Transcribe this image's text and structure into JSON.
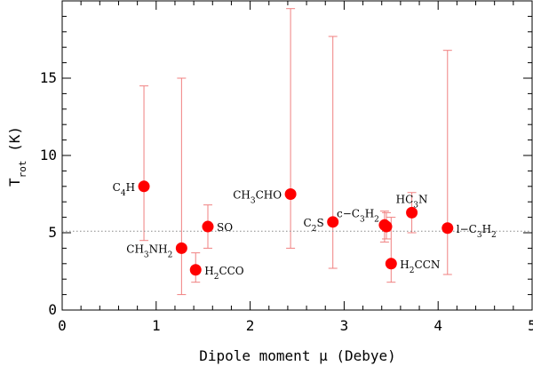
{
  "chart_data": {
    "type": "scatter",
    "xlabel": "Dipole moment μ (Debye)",
    "ylabel": "T_rot (K)",
    "xlim": [
      0,
      5
    ],
    "ylim": [
      0,
      20
    ],
    "xticks": [
      0,
      1,
      2,
      3,
      4,
      5
    ],
    "yticks": [
      0,
      5,
      10,
      15
    ],
    "reference_line": {
      "y": 5.1,
      "style": "dotted"
    },
    "marker_color": "#ff0000",
    "errorbar_color": "#f08080",
    "points": [
      {
        "label": "C4H",
        "x": 0.87,
        "y": 8.0,
        "ylo": 4.5,
        "yhi": 14.5,
        "label_side": "left"
      },
      {
        "label": "CH3NH2",
        "x": 1.27,
        "y": 4.0,
        "ylo": 1.0,
        "yhi": 15.0,
        "label_side": "left"
      },
      {
        "label": "H2CCO",
        "x": 1.42,
        "y": 2.6,
        "ylo": 1.8,
        "yhi": 3.7,
        "label_side": "right"
      },
      {
        "label": "SO",
        "x": 1.55,
        "y": 5.4,
        "ylo": 4.0,
        "yhi": 6.8,
        "label_side": "right"
      },
      {
        "label": "CH3CHO",
        "x": 2.43,
        "y": 7.5,
        "ylo": 4.0,
        "yhi": 19.5,
        "label_side": "left"
      },
      {
        "label": "C2S",
        "x": 2.88,
        "y": 5.7,
        "ylo": 2.7,
        "yhi": 17.7,
        "label_side": "left"
      },
      {
        "label": "c-C3H2",
        "x": 3.43,
        "y": 5.5,
        "ylo": 4.4,
        "yhi": 6.4,
        "label_side": "upper-left"
      },
      {
        "label": "",
        "x": 3.45,
        "y": 5.4,
        "ylo": 4.6,
        "yhi": 6.3,
        "label_side": "none"
      },
      {
        "label": "H2CCN",
        "x": 3.5,
        "y": 3.0,
        "ylo": 1.8,
        "yhi": 6.0,
        "label_side": "right"
      },
      {
        "label": "HC3N",
        "x": 3.72,
        "y": 6.3,
        "ylo": 5.0,
        "yhi": 7.6,
        "label_side": "above"
      },
      {
        "label": "l-C3H2",
        "x": 4.1,
        "y": 5.3,
        "ylo": 2.3,
        "yhi": 16.8,
        "label_side": "right"
      }
    ]
  }
}
